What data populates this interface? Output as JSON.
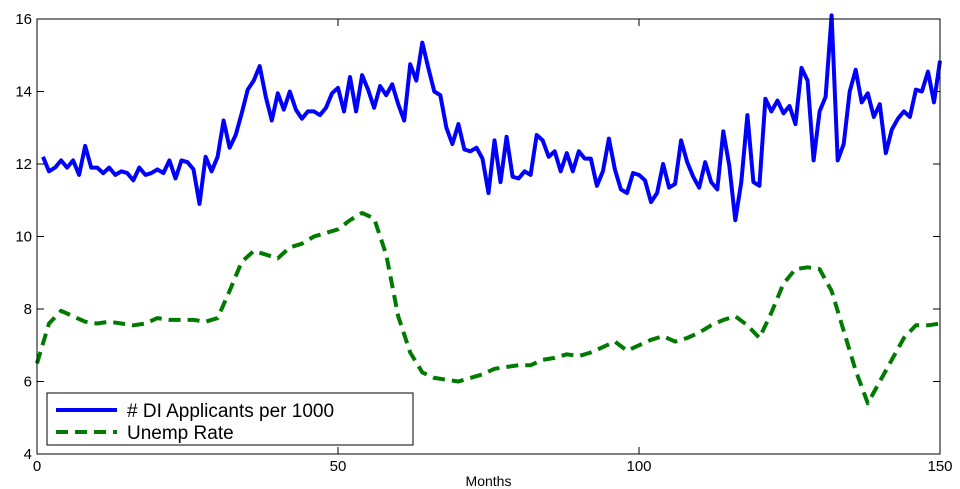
{
  "chart_data": {
    "type": "line",
    "title": "",
    "xlabel": "Months",
    "ylabel": "",
    "xlim": [
      0,
      150
    ],
    "ylim": [
      4,
      16
    ],
    "xticks": [
      0,
      50,
      100,
      150
    ],
    "yticks": [
      4,
      6,
      8,
      10,
      12,
      14,
      16
    ],
    "grid": false,
    "legend_position": "bottom-left",
    "series": [
      {
        "name": "# DI Applicants per 1000",
        "color": "#0000ff",
        "dash": "solid",
        "x": [
          1,
          2,
          3,
          4,
          5,
          6,
          7,
          8,
          9,
          10,
          11,
          12,
          13,
          14,
          15,
          16,
          17,
          18,
          19,
          20,
          21,
          22,
          23,
          24,
          25,
          26,
          27,
          28,
          29,
          30,
          31,
          32,
          33,
          34,
          35,
          36,
          37,
          38,
          39,
          40,
          41,
          42,
          43,
          44,
          45,
          46,
          47,
          48,
          49,
          50,
          51,
          52,
          53,
          54,
          55,
          56,
          57,
          58,
          59,
          60,
          61,
          62,
          63,
          64,
          65,
          66,
          67,
          68,
          69,
          70,
          71,
          72,
          73,
          74,
          75,
          76,
          77,
          78,
          79,
          80,
          81,
          82,
          83,
          84,
          85,
          86,
          87,
          88,
          89,
          90,
          91,
          92,
          93,
          94,
          95,
          96,
          97,
          98,
          99,
          100,
          101,
          102,
          103,
          104,
          105,
          106,
          107,
          108,
          109,
          110,
          111,
          112,
          113,
          114,
          115,
          116,
          117,
          118,
          119,
          120,
          121,
          122,
          123,
          124,
          125,
          126,
          127,
          128,
          129,
          130,
          131,
          132,
          133,
          134,
          135,
          136,
          137,
          138,
          139,
          140,
          141,
          142,
          143,
          144,
          145,
          146,
          147,
          148,
          149,
          150
        ],
        "y": [
          12.2,
          11.8,
          11.9,
          12.1,
          11.9,
          12.1,
          11.7,
          12.5,
          11.9,
          11.9,
          11.75,
          11.9,
          11.7,
          11.8,
          11.75,
          11.55,
          11.9,
          11.7,
          11.75,
          11.85,
          11.75,
          12.1,
          11.6,
          12.1,
          12.05,
          11.85,
          10.9,
          12.2,
          11.8,
          12.2,
          13.2,
          12.45,
          12.8,
          13.4,
          14.05,
          14.3,
          14.7,
          13.85,
          13.2,
          13.95,
          13.5,
          14.0,
          13.5,
          13.25,
          13.45,
          13.45,
          13.35,
          13.55,
          13.95,
          14.1,
          13.45,
          14.4,
          13.45,
          14.45,
          14.05,
          13.55,
          14.15,
          13.9,
          14.2,
          13.65,
          13.2,
          14.75,
          14.3,
          15.35,
          14.65,
          14.0,
          13.9,
          13.0,
          12.55,
          13.1,
          12.4,
          12.35,
          12.45,
          12.15,
          11.2,
          12.65,
          11.5,
          12.75,
          11.65,
          11.6,
          11.8,
          11.7,
          12.8,
          12.65,
          12.2,
          12.35,
          11.8,
          12.3,
          11.8,
          12.35,
          12.15,
          12.15,
          11.4,
          11.8,
          12.7,
          11.85,
          11.3,
          11.2,
          11.75,
          11.7,
          11.55,
          10.95,
          11.2,
          12.0,
          11.35,
          11.45,
          12.65,
          12.05,
          11.65,
          11.35,
          12.05,
          11.5,
          11.3,
          12.9,
          11.95,
          10.45,
          11.5,
          13.35,
          11.5,
          11.4,
          13.8,
          13.45,
          13.75,
          13.4,
          13.6,
          13.1,
          14.65,
          14.3,
          12.1,
          13.45,
          13.85,
          16.1,
          12.1,
          12.55,
          14.0,
          14.6,
          13.7,
          13.95,
          13.3,
          13.65,
          12.3,
          12.95,
          13.25,
          13.45,
          13.3,
          14.05,
          14.0,
          14.55,
          13.7,
          14.85
        ]
      },
      {
        "name": "Unemp Rate",
        "color": "#007a00",
        "dash": "dashed",
        "x": [
          0,
          2,
          4,
          6,
          8,
          10,
          12,
          14,
          16,
          18,
          20,
          22,
          24,
          26,
          28,
          30,
          32,
          34,
          36,
          38,
          40,
          42,
          44,
          46,
          48,
          50,
          52,
          54,
          56,
          58,
          60,
          62,
          64,
          66,
          68,
          70,
          72,
          74,
          76,
          78,
          80,
          82,
          84,
          86,
          88,
          90,
          92,
          94,
          96,
          98,
          100,
          102,
          104,
          106,
          108,
          110,
          112,
          114,
          116,
          118,
          120,
          122,
          124,
          126,
          128,
          130,
          132,
          134,
          136,
          138,
          140,
          142,
          144,
          146,
          148,
          150
        ],
        "y": [
          6.5,
          7.6,
          7.95,
          7.8,
          7.65,
          7.6,
          7.65,
          7.6,
          7.55,
          7.6,
          7.75,
          7.7,
          7.7,
          7.7,
          7.65,
          7.75,
          8.5,
          9.3,
          9.6,
          9.5,
          9.4,
          9.7,
          9.8,
          10.0,
          10.1,
          10.2,
          10.45,
          10.65,
          10.5,
          9.5,
          7.8,
          6.8,
          6.25,
          6.1,
          6.05,
          6.0,
          6.1,
          6.2,
          6.35,
          6.4,
          6.45,
          6.45,
          6.6,
          6.65,
          6.75,
          6.7,
          6.8,
          6.95,
          7.1,
          6.85,
          7.0,
          7.15,
          7.25,
          7.1,
          7.2,
          7.35,
          7.55,
          7.7,
          7.8,
          7.55,
          7.2,
          7.9,
          8.7,
          9.1,
          9.15,
          9.1,
          8.5,
          7.4,
          6.3,
          5.4,
          6.0,
          6.6,
          7.2,
          7.55,
          7.55,
          7.6
        ]
      }
    ]
  }
}
